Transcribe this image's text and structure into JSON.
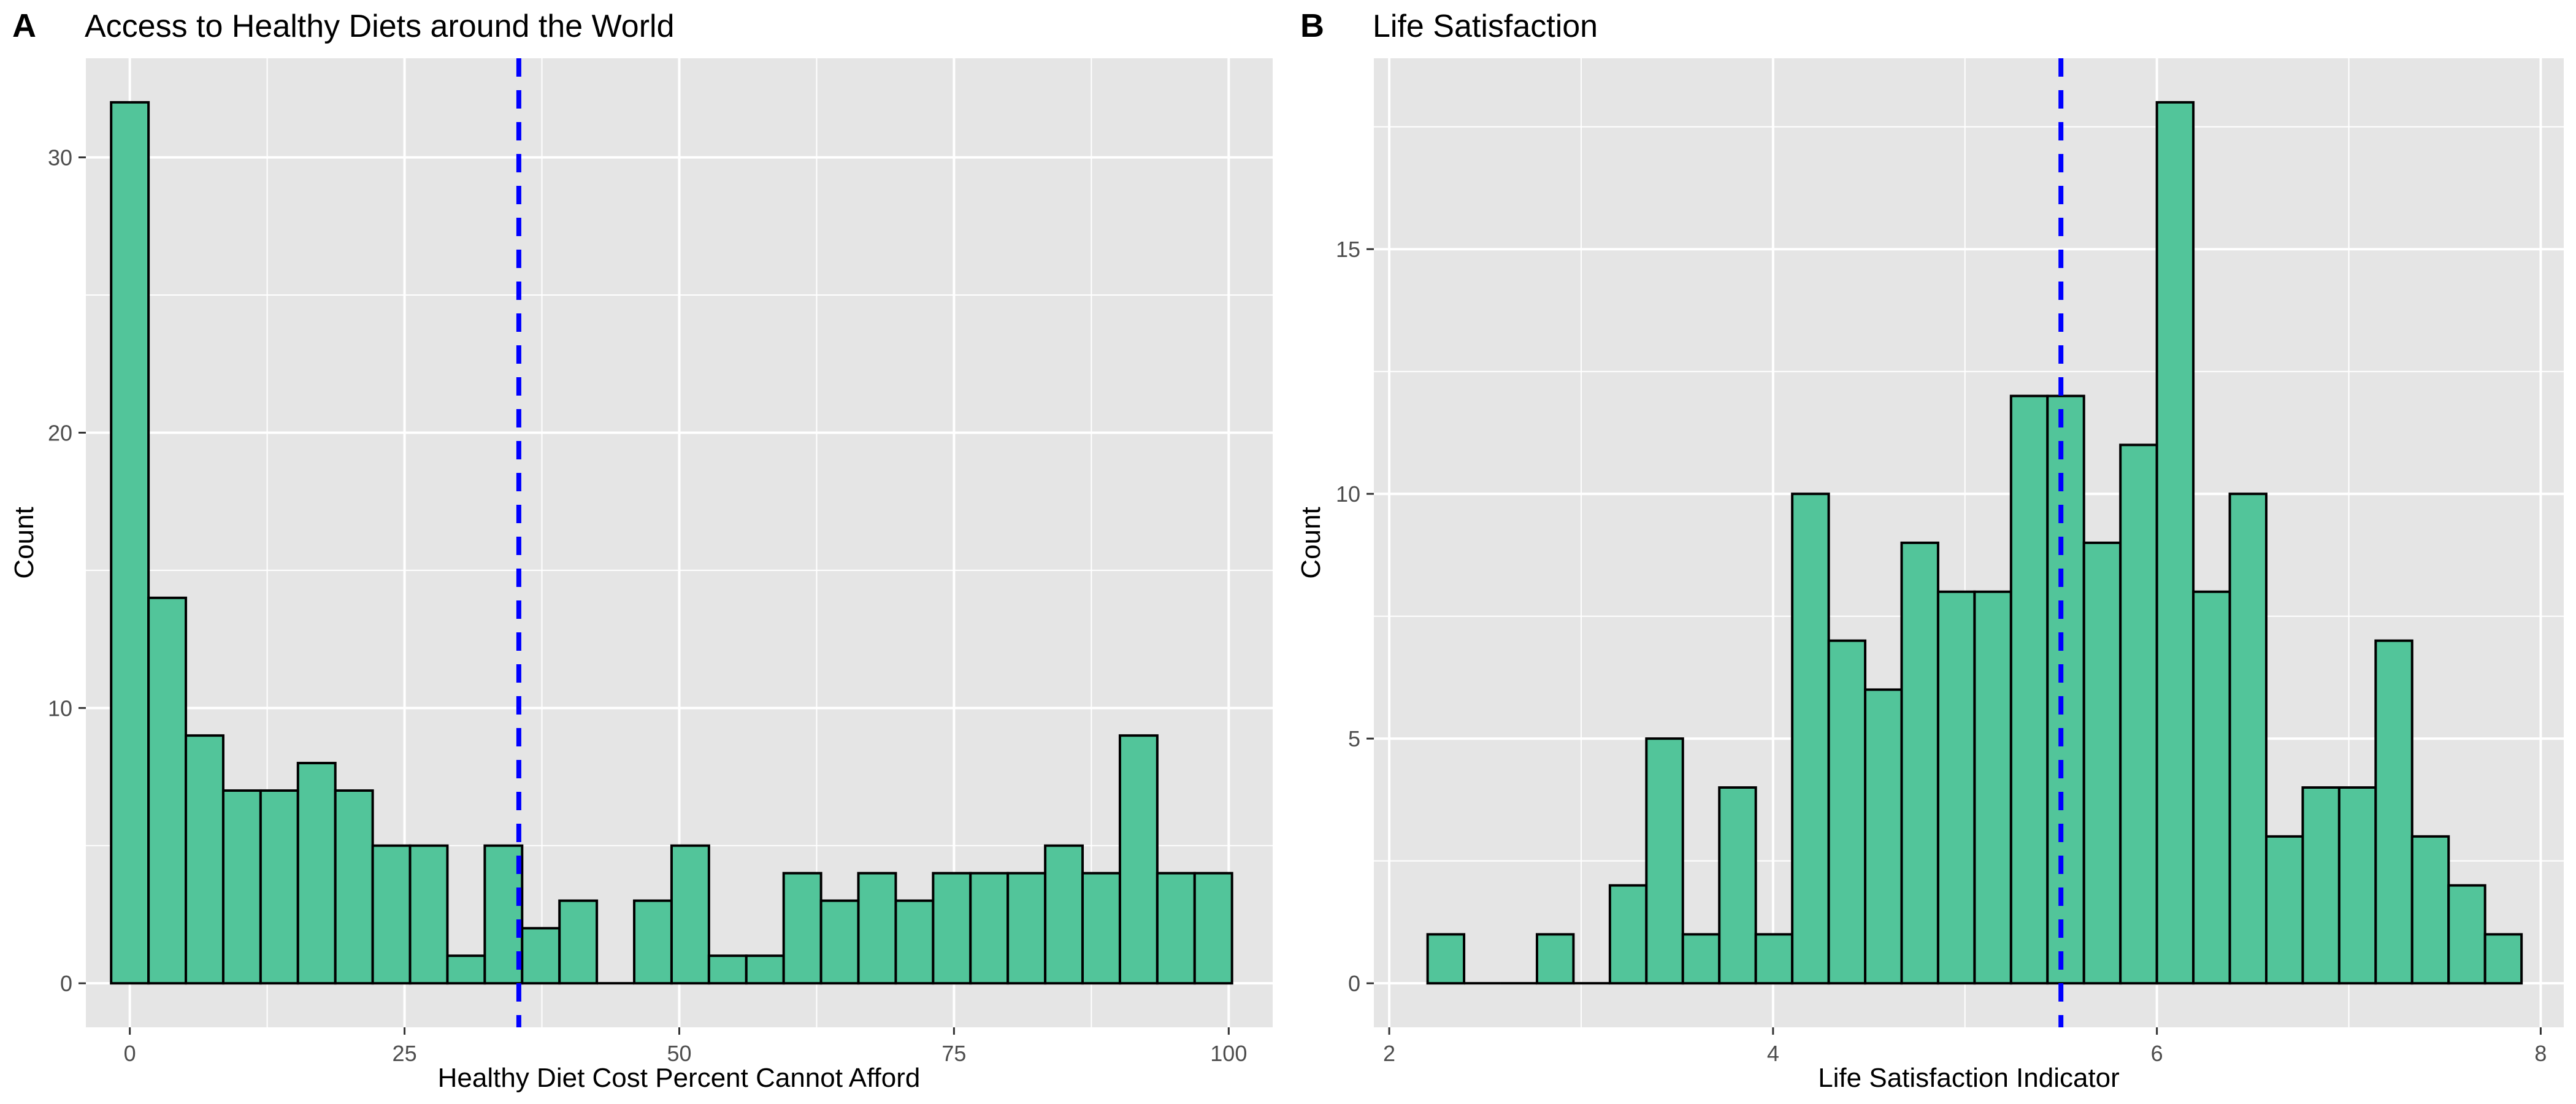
{
  "colors": {
    "bar_fill": "#52C59A",
    "bar_stroke": "#000000",
    "panel_bg": "#E5E5E5",
    "grid": "#FFFFFF",
    "mean_line": "#0000FF",
    "text": "#000000",
    "tick_text": "#4D4D4D"
  },
  "chart_data": [
    {
      "type": "bar",
      "tag": "A",
      "title": "Access to Healthy Diets around the World",
      "xlabel": "Healthy Diet Cost Percent Cannot Afford",
      "ylabel": "Count",
      "xlim": [
        -4,
        104
      ],
      "ylim": [
        -1.6,
        33.6
      ],
      "x_ticks": [
        0,
        25,
        50,
        75,
        100
      ],
      "x_tick_labels": [
        "0",
        "25",
        "50",
        "75",
        "100"
      ],
      "y_ticks": [
        0,
        10,
        20,
        30
      ],
      "y_tick_labels": [
        "0",
        "10",
        "20",
        "30"
      ],
      "bin_width": 3.4,
      "bin_start": -1.7,
      "values": [
        32,
        14,
        9,
        7,
        7,
        8,
        7,
        5,
        5,
        1,
        5,
        2,
        3,
        0,
        3,
        5,
        1,
        1,
        4,
        3,
        4,
        3,
        4,
        4,
        4,
        5,
        4,
        9,
        4,
        4
      ],
      "mean_line_x": 35.4,
      "grid": true,
      "legend": "none"
    },
    {
      "type": "bar",
      "tag": "B",
      "title": "Life Satisfaction",
      "xlabel": "Life Satisfaction Indicator",
      "ylabel": "Count",
      "xlim": [
        1.92,
        8.12
      ],
      "ylim": [
        -0.9,
        18.9
      ],
      "x_ticks": [
        2,
        4,
        6,
        8
      ],
      "x_tick_labels": [
        "2",
        "4",
        "6",
        "8"
      ],
      "y_ticks": [
        0,
        5,
        10,
        15
      ],
      "y_tick_labels": [
        "0",
        "5",
        "10",
        "15"
      ],
      "bin_width": 0.19,
      "bin_start": 2.2,
      "values": [
        1,
        0,
        0,
        1,
        0,
        2,
        5,
        1,
        4,
        1,
        10,
        7,
        6,
        9,
        8,
        8,
        12,
        12,
        9,
        11,
        18,
        8,
        10,
        3,
        4,
        4,
        7,
        3,
        2,
        1
      ],
      "mean_line_x": 5.5,
      "grid": true,
      "legend": "none"
    }
  ]
}
